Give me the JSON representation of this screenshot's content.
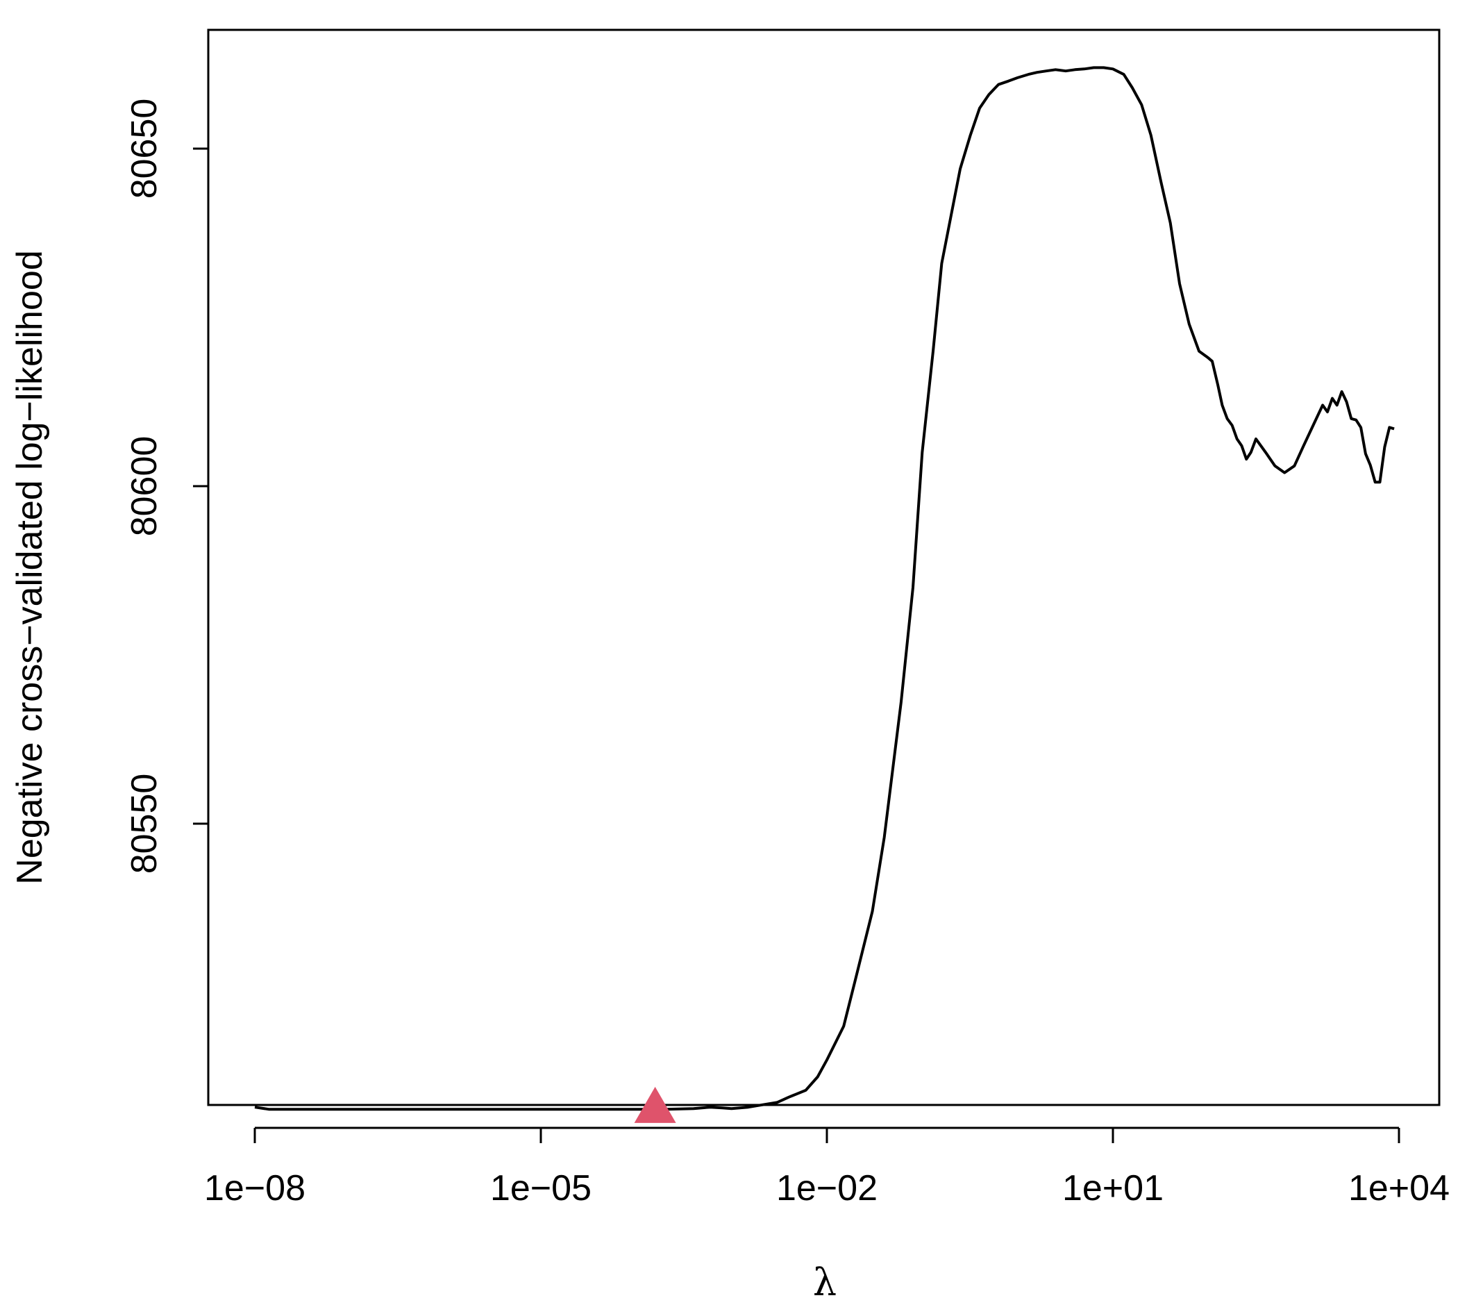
{
  "chart_data": {
    "type": "line",
    "title": "",
    "xlabel": "λ",
    "ylabel": "Negative cross−validated log−likelihood",
    "x_scale": "log10",
    "xlim": [
      1e-08,
      10000
    ],
    "ylim": [
      80508,
      80668
    ],
    "x_ticks": [
      {
        "value": 1e-08,
        "label": "1e−08"
      },
      {
        "value": 1e-05,
        "label": "1e−05"
      },
      {
        "value": 0.01,
        "label": "1e−02"
      },
      {
        "value": 10,
        "label": "1e+01"
      },
      {
        "value": 10000,
        "label": "1e+04"
      }
    ],
    "y_ticks": [
      {
        "value": 80550,
        "label": "80550"
      },
      {
        "value": 80600,
        "label": "80600"
      },
      {
        "value": 80650,
        "label": "80650"
      }
    ],
    "grid": false,
    "line_color": "#000000",
    "marker_color": "#DF536B",
    "series": [
      {
        "x": [
          1e-08,
          1.4e-08,
          1e-07,
          1e-06,
          1e-05,
          0.0001,
          0.0002,
          0.0004,
          0.0006,
          0.0008,
          0.001,
          0.0015,
          0.002,
          0.003,
          0.004,
          0.006,
          0.008,
          0.01,
          0.015,
          0.02,
          0.03,
          0.04,
          0.06,
          0.08,
          0.1,
          0.13,
          0.16,
          0.2,
          0.25,
          0.32,
          0.4,
          0.5,
          0.63,
          0.8,
          1,
          1.3,
          1.6,
          2,
          2.5,
          3.2,
          4,
          5,
          6.3,
          8,
          10,
          13,
          16,
          20,
          25,
          32,
          40,
          50,
          63,
          80,
          100,
          110,
          126,
          140,
          158,
          178,
          200,
          224,
          251,
          280,
          316,
          400,
          500,
          631,
          800,
          1000,
          1259,
          1585,
          1778,
          2000,
          2239,
          2512,
          2818,
          3162,
          3548,
          3981,
          4467,
          5012,
          5623,
          6310,
          7079,
          7943,
          8913
        ],
        "y": [
          80508.0,
          80507.7,
          80507.7,
          80507.7,
          80507.7,
          80507.7,
          80507.7,
          80507.8,
          80508.0,
          80507.9,
          80507.8,
          80508.0,
          80508.3,
          80508.7,
          80509.5,
          80510.5,
          80512.5,
          80515.0,
          80520.0,
          80527.0,
          80537.0,
          80548.0,
          80568.0,
          80585.0,
          80605.0,
          80620.0,
          80633.0,
          80640.0,
          80647.0,
          80652.0,
          80656.0,
          80658.0,
          80659.5,
          80660.0,
          80660.5,
          80661.0,
          80661.3,
          80661.5,
          80661.7,
          80661.5,
          80661.7,
          80661.8,
          80662.0,
          80662.0,
          80661.8,
          80661.0,
          80659.0,
          80656.5,
          80652.0,
          80645.0,
          80639.0,
          80630.0,
          80624.0,
          80620.0,
          80619.0,
          80618.5,
          80615.0,
          80612.0,
          80610.0,
          80609.0,
          80607.0,
          80606.0,
          80604.0,
          80605.0,
          80607.0,
          80605.0,
          80603.0,
          80602.0,
          80603.0,
          80606.0,
          80609.0,
          80612.0,
          80611.0,
          80613.0,
          80612.0,
          80614.0,
          80612.5,
          80610.0,
          80609.8,
          80608.7,
          80604.8,
          80603.1,
          80600.6,
          80600.6,
          80605.8,
          80608.7,
          80608.5
        ]
      }
    ],
    "marker": {
      "x": 0.000158,
      "y": 80507.7,
      "shape": "triangle"
    }
  }
}
